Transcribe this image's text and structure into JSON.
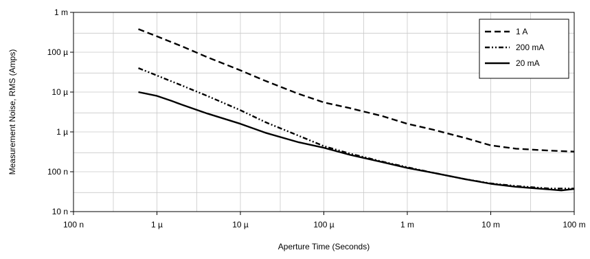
{
  "chart_data": {
    "type": "line",
    "title": "",
    "xlabel": "Aperture Time (Seconds)",
    "ylabel": "Measurement Noise, RMS (Amps)",
    "x_scale": "log",
    "y_scale": "log",
    "xlim": [
      1e-07,
      0.1
    ],
    "ylim": [
      1e-08,
      0.001
    ],
    "grid": true,
    "legend_position": "top-right",
    "x_ticks": [
      {
        "value": 1e-07,
        "label": "100 n"
      },
      {
        "value": 1e-06,
        "label": "1 µ"
      },
      {
        "value": 1e-05,
        "label": "10 µ"
      },
      {
        "value": 0.0001,
        "label": "100 µ"
      },
      {
        "value": 0.001,
        "label": "1 m"
      },
      {
        "value": 0.01,
        "label": "10 m"
      },
      {
        "value": 0.1,
        "label": "100 m"
      }
    ],
    "y_ticks": [
      {
        "value": 1e-08,
        "label": "10 n"
      },
      {
        "value": 1e-07,
        "label": "100 n"
      },
      {
        "value": 1e-06,
        "label": "1 µ"
      },
      {
        "value": 1e-05,
        "label": "10 µ"
      },
      {
        "value": 0.0001,
        "label": "100 µ"
      },
      {
        "value": 0.001,
        "label": "1 m"
      }
    ],
    "series": [
      {
        "name": "1 A",
        "dash": "dashed",
        "points": [
          [
            6e-07,
            0.00038
          ],
          [
            1e-06,
            0.00025
          ],
          [
            2e-06,
            0.00014
          ],
          [
            4e-06,
            7.5e-05
          ],
          [
            1e-05,
            3.5e-05
          ],
          [
            2e-05,
            1.9e-05
          ],
          [
            5e-05,
            9e-06
          ],
          [
            0.0001,
            5.5e-06
          ],
          [
            0.0002,
            4e-06
          ],
          [
            0.0005,
            2.5e-06
          ],
          [
            0.001,
            1.6e-06
          ],
          [
            0.002,
            1.15e-06
          ],
          [
            0.005,
            7e-07
          ],
          [
            0.01,
            4.6e-07
          ],
          [
            0.02,
            3.8e-07
          ],
          [
            0.05,
            3.4e-07
          ],
          [
            0.1,
            3.2e-07
          ]
        ]
      },
      {
        "name": "200 mA",
        "dash": "dash-dot-dot",
        "points": [
          [
            6e-07,
            4e-05
          ],
          [
            1e-06,
            2.6e-05
          ],
          [
            2e-06,
            1.45e-05
          ],
          [
            4e-06,
            8e-06
          ],
          [
            1e-05,
            3.5e-06
          ],
          [
            2e-05,
            1.75e-06
          ],
          [
            5e-05,
            8e-07
          ],
          [
            0.0001,
            4.4e-07
          ],
          [
            0.0002,
            2.9e-07
          ],
          [
            0.0005,
            1.8e-07
          ],
          [
            0.001,
            1.3e-07
          ],
          [
            0.002,
            9.5e-08
          ],
          [
            0.005,
            6.5e-08
          ],
          [
            0.01,
            5.1e-08
          ],
          [
            0.02,
            4.4e-08
          ],
          [
            0.05,
            3.8e-08
          ],
          [
            0.1,
            3.8e-08
          ]
        ]
      },
      {
        "name": "20 mA",
        "dash": "solid",
        "points": [
          [
            6e-07,
            1e-05
          ],
          [
            1e-06,
            8e-06
          ],
          [
            1.5e-06,
            6e-06
          ],
          [
            2e-06,
            4.8e-06
          ],
          [
            4e-06,
            2.9e-06
          ],
          [
            1e-05,
            1.6e-06
          ],
          [
            2e-05,
            9.5e-07
          ],
          [
            5e-05,
            5.5e-07
          ],
          [
            0.0001,
            4e-07
          ],
          [
            0.0002,
            2.7e-07
          ],
          [
            0.0005,
            1.75e-07
          ],
          [
            0.001,
            1.25e-07
          ],
          [
            0.002,
            9.5e-08
          ],
          [
            0.005,
            6.5e-08
          ],
          [
            0.01,
            5e-08
          ],
          [
            0.02,
            4.2e-08
          ],
          [
            0.05,
            3.6e-08
          ],
          [
            0.07,
            3.4e-08
          ],
          [
            0.1,
            3.7e-08
          ]
        ]
      }
    ]
  }
}
